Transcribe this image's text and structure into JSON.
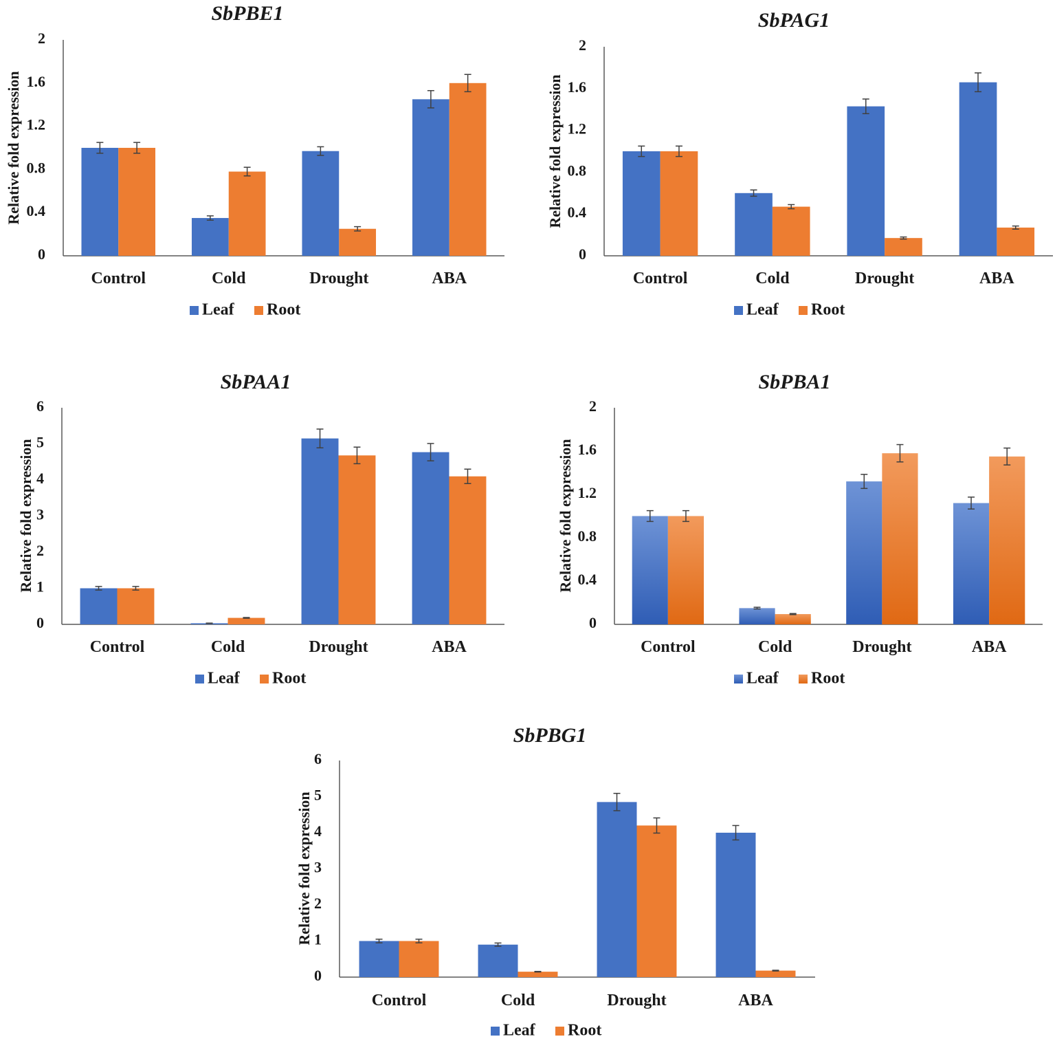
{
  "figure": {
    "series_names": [
      "Leaf",
      "Root"
    ],
    "colors": {
      "leaf": "#4472C4",
      "leaf_light": "#6E93D6",
      "leaf_dark": "#2F5DB5",
      "root": "#ED7D31",
      "root_light": "#F29A5C",
      "root_dark": "#E06914",
      "axis": "#595959",
      "error_bar": "#404040"
    }
  },
  "chart_data": [
    {
      "type": "bar",
      "title": "SbPBE1",
      "xlabel": "",
      "ylabel": "Relative fold expression",
      "categories": [
        "Control",
        "Cold",
        "Drought",
        "ABA"
      ],
      "series": [
        {
          "name": "Leaf",
          "values": [
            1.0,
            0.35,
            0.97,
            1.45
          ],
          "errors": [
            0.05,
            0.02,
            0.04,
            0.08
          ]
        },
        {
          "name": "Root",
          "values": [
            1.0,
            0.78,
            0.25,
            1.6
          ],
          "errors": [
            0.05,
            0.04,
            0.02,
            0.08
          ]
        }
      ],
      "ylim": [
        0,
        2
      ],
      "yticks": [
        "0",
        "0.4",
        "0.8",
        "1.2",
        "1.6",
        "2"
      ],
      "gradient": false
    },
    {
      "type": "bar",
      "title": "SbPAG1",
      "xlabel": "",
      "ylabel": "Relative fold expression",
      "categories": [
        "Control",
        "Cold",
        "Drought",
        "ABA"
      ],
      "series": [
        {
          "name": "Leaf",
          "values": [
            1.0,
            0.6,
            1.43,
            1.66
          ],
          "errors": [
            0.05,
            0.03,
            0.07,
            0.09
          ]
        },
        {
          "name": "Root",
          "values": [
            1.0,
            0.47,
            0.17,
            0.27
          ],
          "errors": [
            0.05,
            0.02,
            0.01,
            0.015
          ]
        }
      ],
      "ylim": [
        0,
        2
      ],
      "yticks": [
        "0",
        "0.4",
        "0.8",
        "1.2",
        "1.6",
        "2"
      ],
      "gradient": false
    },
    {
      "type": "bar",
      "title": "SbPAA1",
      "xlabel": "",
      "ylabel": "Relative fold expression",
      "categories": [
        "Control",
        "Cold",
        "Drought",
        "ABA"
      ],
      "series": [
        {
          "name": "Leaf",
          "values": [
            1.0,
            0.03,
            5.15,
            4.77
          ],
          "errors": [
            0.05,
            0.005,
            0.26,
            0.24
          ]
        },
        {
          "name": "Root",
          "values": [
            1.0,
            0.18,
            4.68,
            4.1
          ],
          "errors": [
            0.05,
            0.01,
            0.23,
            0.2
          ]
        }
      ],
      "ylim": [
        0,
        6
      ],
      "yticks": [
        "0",
        "1",
        "2",
        "3",
        "4",
        "5",
        "6"
      ],
      "gradient": false
    },
    {
      "type": "bar",
      "title": "SbPBA1",
      "xlabel": "",
      "ylabel": "Relative fold expression",
      "categories": [
        "Control",
        "Cold",
        "Drought",
        "ABA"
      ],
      "series": [
        {
          "name": "Leaf",
          "values": [
            1.0,
            0.15,
            1.32,
            1.12
          ],
          "errors": [
            0.05,
            0.008,
            0.065,
            0.055
          ]
        },
        {
          "name": "Root",
          "values": [
            1.0,
            0.095,
            1.58,
            1.55
          ],
          "errors": [
            0.05,
            0.005,
            0.08,
            0.078
          ]
        }
      ],
      "ylim": [
        0,
        2
      ],
      "yticks": [
        "0",
        "0.4",
        "0.8",
        "1.2",
        "1.6",
        "2"
      ],
      "gradient": true
    },
    {
      "type": "bar",
      "title": "SbPBG1",
      "xlabel": "",
      "ylabel": "Relative fold expression",
      "categories": [
        "Control",
        "Cold",
        "Drought",
        "ABA"
      ],
      "series": [
        {
          "name": "Leaf",
          "values": [
            1.0,
            0.9,
            4.85,
            4.0
          ],
          "errors": [
            0.05,
            0.045,
            0.24,
            0.2
          ]
        },
        {
          "name": "Root",
          "values": [
            1.0,
            0.15,
            4.2,
            0.18
          ],
          "errors": [
            0.05,
            0.008,
            0.21,
            0.01
          ]
        }
      ],
      "ylim": [
        0,
        6
      ],
      "yticks": [
        "0",
        "1",
        "2",
        "3",
        "4",
        "5",
        "6"
      ],
      "gradient": false
    }
  ]
}
